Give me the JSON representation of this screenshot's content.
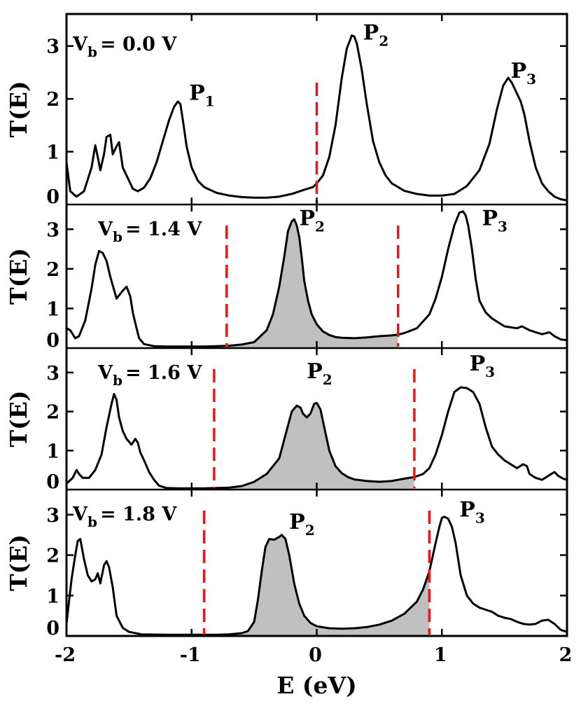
{
  "chart_data": {
    "type": "line",
    "xlabel": "E (eV)",
    "ylabel": "T(E)",
    "xlim": [
      -2,
      2
    ],
    "x_ticks": [
      "-2",
      "-1",
      "0",
      "1",
      "2"
    ],
    "x_tick_values": [
      -2,
      -1,
      0,
      1,
      2
    ],
    "panels": [
      {
        "name": "vb-0.0",
        "bias_main": "V",
        "bias_sub": "b",
        "bias_value": "= 0.0 V",
        "ylim": [
          0,
          3.5
        ],
        "y_ticks": [
          "0",
          "1",
          "2",
          "3"
        ],
        "y_tick_values": [
          0,
          1,
          2,
          3
        ],
        "bias_window": [
          0.0,
          0.0
        ],
        "shaded": false,
        "peaks": [
          {
            "main": "P",
            "sub": "1",
            "x": -1.02,
            "y": 1.98
          },
          {
            "main": "P",
            "sub": "2",
            "x": 0.37,
            "y": 3.12
          },
          {
            "main": "P",
            "sub": "3",
            "x": 1.55,
            "y": 2.4
          }
        ],
        "series": {
          "x": [
            -2.0,
            -1.97,
            -1.92,
            -1.86,
            -1.8,
            -1.77,
            -1.75,
            -1.73,
            -1.7,
            -1.68,
            -1.65,
            -1.63,
            -1.6,
            -1.58,
            -1.55,
            -1.53,
            -1.5,
            -1.47,
            -1.43,
            -1.38,
            -1.33,
            -1.28,
            -1.23,
            -1.18,
            -1.14,
            -1.11,
            -1.09,
            -1.07,
            -1.04,
            -1.0,
            -0.95,
            -0.9,
            -0.8,
            -0.7,
            -0.6,
            -0.5,
            -0.4,
            -0.3,
            -0.2,
            -0.1,
            -0.03,
            0.0,
            0.05,
            0.1,
            0.15,
            0.2,
            0.24,
            0.28,
            0.3,
            0.32,
            0.34,
            0.36,
            0.4,
            0.45,
            0.5,
            0.55,
            0.6,
            0.7,
            0.8,
            0.9,
            1.0,
            1.1,
            1.2,
            1.3,
            1.38,
            1.44,
            1.49,
            1.53,
            1.56,
            1.6,
            1.63,
            1.66,
            1.7,
            1.75,
            1.8,
            1.85,
            1.9,
            1.95,
            2.0
          ],
          "y": [
            0.8,
            0.25,
            0.15,
            0.25,
            0.7,
            1.12,
            0.9,
            0.65,
            0.95,
            1.28,
            1.32,
            0.95,
            1.1,
            1.18,
            0.7,
            0.6,
            0.45,
            0.3,
            0.25,
            0.32,
            0.5,
            0.8,
            1.2,
            1.6,
            1.85,
            1.95,
            1.9,
            1.6,
            1.1,
            0.7,
            0.45,
            0.33,
            0.22,
            0.17,
            0.14,
            0.13,
            0.13,
            0.15,
            0.2,
            0.28,
            0.33,
            0.4,
            0.55,
            0.9,
            1.5,
            2.4,
            2.95,
            3.2,
            3.18,
            3.05,
            2.8,
            2.55,
            1.9,
            1.2,
            0.8,
            0.55,
            0.4,
            0.26,
            0.2,
            0.17,
            0.17,
            0.2,
            0.35,
            0.65,
            1.15,
            1.8,
            2.25,
            2.4,
            2.3,
            2.1,
            1.95,
            1.7,
            1.2,
            0.7,
            0.4,
            0.25,
            0.15,
            0.1,
            0.08
          ]
        }
      },
      {
        "name": "vb-1.4",
        "bias_main": "V",
        "bias_sub": "b",
        "bias_value": "= 1.4 V",
        "ylim": [
          0,
          3.5
        ],
        "y_ticks": [
          "0",
          "1",
          "2",
          "3"
        ],
        "y_tick_values": [
          0,
          1,
          2,
          3
        ],
        "bias_window": [
          -0.72,
          0.65
        ],
        "shaded": true,
        "peaks": [
          {
            "main": "P",
            "sub": "2",
            "x": -0.14,
            "y": 3.1
          },
          {
            "main": "P",
            "sub": "3",
            "x": 1.32,
            "y": 3.1
          }
        ],
        "series": {
          "x": [
            -2.0,
            -1.97,
            -1.93,
            -1.9,
            -1.85,
            -1.8,
            -1.77,
            -1.74,
            -1.71,
            -1.68,
            -1.65,
            -1.6,
            -1.55,
            -1.52,
            -1.49,
            -1.47,
            -1.44,
            -1.42,
            -1.38,
            -1.3,
            -1.2,
            -1.1,
            -1.0,
            -0.9,
            -0.8,
            -0.7,
            -0.6,
            -0.5,
            -0.4,
            -0.35,
            -0.3,
            -0.26,
            -0.23,
            -0.2,
            -0.18,
            -0.16,
            -0.14,
            -0.12,
            -0.1,
            -0.07,
            -0.04,
            0.0,
            0.05,
            0.1,
            0.15,
            0.2,
            0.3,
            0.4,
            0.5,
            0.6,
            0.65,
            0.7,
            0.8,
            0.9,
            0.95,
            1.0,
            1.05,
            1.1,
            1.14,
            1.17,
            1.19,
            1.21,
            1.24,
            1.27,
            1.3,
            1.35,
            1.4,
            1.5,
            1.6,
            1.64,
            1.7,
            1.8,
            1.86,
            1.9,
            1.95,
            2.0
          ],
          "y": [
            0.5,
            0.45,
            0.25,
            0.3,
            0.7,
            1.5,
            2.1,
            2.45,
            2.4,
            2.2,
            1.8,
            1.25,
            1.45,
            1.55,
            1.3,
            0.9,
            0.5,
            0.25,
            0.1,
            0.05,
            0.04,
            0.04,
            0.04,
            0.04,
            0.05,
            0.06,
            0.09,
            0.15,
            0.45,
            0.85,
            1.55,
            2.3,
            2.95,
            3.2,
            3.25,
            3.1,
            2.8,
            2.3,
            1.7,
            1.2,
            0.85,
            0.6,
            0.42,
            0.33,
            0.28,
            0.26,
            0.25,
            0.27,
            0.3,
            0.32,
            0.34,
            0.38,
            0.5,
            0.85,
            1.25,
            1.8,
            2.5,
            3.1,
            3.42,
            3.45,
            3.35,
            3.1,
            2.5,
            1.75,
            1.2,
            0.9,
            0.75,
            0.55,
            0.5,
            0.55,
            0.45,
            0.35,
            0.4,
            0.3,
            0.22,
            0.2
          ]
        }
      },
      {
        "name": "vb-1.6",
        "bias_main": "V",
        "bias_sub": "b",
        "bias_value": "= 1.6 V",
        "ylim": [
          0,
          3.5
        ],
        "y_ticks": [
          "0",
          "1",
          "2",
          "3"
        ],
        "y_tick_values": [
          0,
          1,
          2,
          3
        ],
        "bias_window": [
          -0.82,
          0.78
        ],
        "shaded": true,
        "peaks": [
          {
            "main": "P",
            "sub": "2",
            "x": -0.08,
            "y": 2.85
          },
          {
            "main": "P",
            "sub": "3",
            "x": 1.22,
            "y": 3.05
          }
        ],
        "series": {
          "x": [
            -2.0,
            -1.95,
            -1.92,
            -1.9,
            -1.87,
            -1.82,
            -1.77,
            -1.72,
            -1.68,
            -1.64,
            -1.62,
            -1.6,
            -1.58,
            -1.55,
            -1.52,
            -1.48,
            -1.45,
            -1.43,
            -1.41,
            -1.38,
            -1.34,
            -1.3,
            -1.26,
            -1.2,
            -1.1,
            -1.0,
            -0.9,
            -0.8,
            -0.7,
            -0.6,
            -0.5,
            -0.4,
            -0.3,
            -0.25,
            -0.2,
            -0.16,
            -0.13,
            -0.11,
            -0.08,
            -0.05,
            -0.02,
            0.0,
            0.03,
            0.06,
            0.1,
            0.15,
            0.2,
            0.25,
            0.3,
            0.4,
            0.5,
            0.6,
            0.7,
            0.78,
            0.85,
            0.9,
            0.95,
            1.0,
            1.05,
            1.1,
            1.15,
            1.2,
            1.25,
            1.3,
            1.35,
            1.4,
            1.45,
            1.5,
            1.55,
            1.6,
            1.65,
            1.68,
            1.7,
            1.75,
            1.8,
            1.85,
            1.9,
            1.93,
            1.97,
            2.0
          ],
          "y": [
            0.15,
            0.3,
            0.5,
            0.4,
            0.3,
            0.3,
            0.5,
            0.9,
            1.6,
            2.2,
            2.45,
            2.3,
            1.85,
            1.5,
            1.3,
            1.15,
            1.3,
            1.2,
            0.95,
            0.75,
            0.45,
            0.25,
            0.1,
            0.04,
            0.03,
            0.03,
            0.03,
            0.04,
            0.05,
            0.09,
            0.2,
            0.4,
            0.8,
            1.4,
            2.0,
            2.15,
            2.1,
            1.95,
            1.85,
            1.95,
            2.2,
            2.22,
            2.05,
            1.6,
            1.0,
            0.6,
            0.42,
            0.32,
            0.26,
            0.22,
            0.2,
            0.22,
            0.28,
            0.32,
            0.4,
            0.55,
            0.9,
            1.4,
            2.0,
            2.5,
            2.62,
            2.6,
            2.5,
            2.2,
            1.6,
            1.1,
            0.9,
            0.75,
            0.65,
            0.55,
            0.65,
            0.6,
            0.4,
            0.3,
            0.25,
            0.35,
            0.45,
            0.35,
            0.28,
            0.25
          ]
        }
      },
      {
        "name": "vb-1.8",
        "bias_main": "V",
        "bias_sub": "b",
        "bias_value": "= 1.8 V",
        "ylim": [
          0,
          3.5
        ],
        "y_ticks": [
          "0",
          "1",
          "2",
          "3"
        ],
        "y_tick_values": [
          0,
          1,
          2,
          3
        ],
        "bias_window": [
          -0.9,
          0.9
        ],
        "shaded": true,
        "peaks": [
          {
            "main": "P",
            "sub": "2",
            "x": -0.22,
            "y": 2.65
          },
          {
            "main": "P",
            "sub": "3",
            "x": 1.14,
            "y": 2.95
          }
        ],
        "series": {
          "x": [
            -2.0,
            -1.96,
            -1.93,
            -1.91,
            -1.89,
            -1.86,
            -1.83,
            -1.8,
            -1.77,
            -1.75,
            -1.73,
            -1.7,
            -1.68,
            -1.66,
            -1.63,
            -1.6,
            -1.55,
            -1.5,
            -1.4,
            -1.2,
            -1.0,
            -0.9,
            -0.8,
            -0.7,
            -0.6,
            -0.55,
            -0.5,
            -0.47,
            -0.44,
            -0.41,
            -0.38,
            -0.34,
            -0.3,
            -0.28,
            -0.25,
            -0.22,
            -0.18,
            -0.14,
            -0.1,
            -0.05,
            0.0,
            0.1,
            0.2,
            0.3,
            0.4,
            0.5,
            0.6,
            0.7,
            0.8,
            0.85,
            0.9,
            0.95,
            0.98,
            1.0,
            1.02,
            1.05,
            1.08,
            1.11,
            1.15,
            1.2,
            1.25,
            1.3,
            1.35,
            1.4,
            1.45,
            1.5,
            1.55,
            1.6,
            1.65,
            1.7,
            1.75,
            1.8,
            1.85,
            1.9,
            1.95,
            2.0
          ],
          "y": [
            0.3,
            1.4,
            2.0,
            2.35,
            2.4,
            1.9,
            1.5,
            1.35,
            1.4,
            1.55,
            1.3,
            1.75,
            1.85,
            1.7,
            1.2,
            0.5,
            0.2,
            0.1,
            0.04,
            0.03,
            0.03,
            0.03,
            0.03,
            0.04,
            0.07,
            0.12,
            0.35,
            0.9,
            1.6,
            2.2,
            2.4,
            2.38,
            2.45,
            2.5,
            2.4,
            2.0,
            1.3,
            0.8,
            0.5,
            0.32,
            0.24,
            0.19,
            0.18,
            0.19,
            0.22,
            0.28,
            0.38,
            0.55,
            0.85,
            1.15,
            1.6,
            2.3,
            2.7,
            2.92,
            2.95,
            2.9,
            2.7,
            2.3,
            1.5,
            1.0,
            0.8,
            0.7,
            0.65,
            0.6,
            0.5,
            0.45,
            0.42,
            0.35,
            0.3,
            0.28,
            0.3,
            0.38,
            0.4,
            0.3,
            0.15,
            0.1
          ]
        }
      }
    ]
  }
}
